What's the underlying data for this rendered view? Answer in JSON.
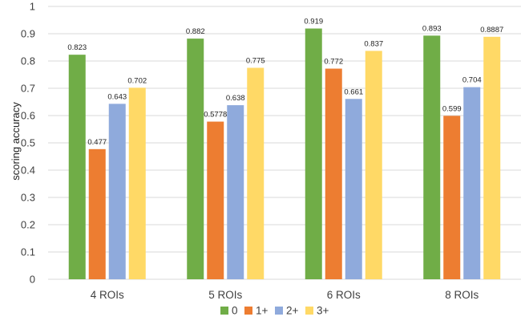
{
  "chart_data": {
    "type": "bar",
    "categories": [
      "4 ROIs",
      "5 ROIs",
      "6 ROIs",
      "8 ROIs"
    ],
    "series": [
      {
        "name": "0",
        "values": [
          0.823,
          0.882,
          0.919,
          0.893
        ],
        "labels": [
          "0.823",
          "0.882",
          "0.919",
          "0.893"
        ],
        "color": "#70ad47"
      },
      {
        "name": "1+",
        "values": [
          0.477,
          0.5778,
          0.772,
          0.599
        ],
        "labels": [
          "0.477",
          "0.5778",
          "0.772",
          "0.599"
        ],
        "color": "#ed7d31"
      },
      {
        "name": "2+",
        "values": [
          0.643,
          0.638,
          0.661,
          0.704
        ],
        "labels": [
          "0.643",
          "0.638",
          "0.661",
          "0.704"
        ],
        "color": "#8faadc"
      },
      {
        "name": "3+",
        "values": [
          0.702,
          0.775,
          0.837,
          0.8887
        ],
        "labels": [
          "0.702",
          "0.775",
          "0.837",
          "0.8887"
        ],
        "color": "#ffd966"
      }
    ],
    "title": "",
    "xlabel": "",
    "ylabel": "scoring accuracy",
    "ylim": [
      0,
      1
    ],
    "yticks": [
      0,
      0.1,
      0.2,
      0.3,
      0.4,
      0.5,
      0.6,
      0.7,
      0.8,
      0.9,
      1
    ],
    "ytick_labels": [
      "0",
      "0.1",
      "0.2",
      "0.3",
      "0.4",
      "0.5",
      "0.6",
      "0.7",
      "0.8",
      "0.9",
      "1"
    ],
    "grid": true,
    "legend_position": "bottom"
  }
}
